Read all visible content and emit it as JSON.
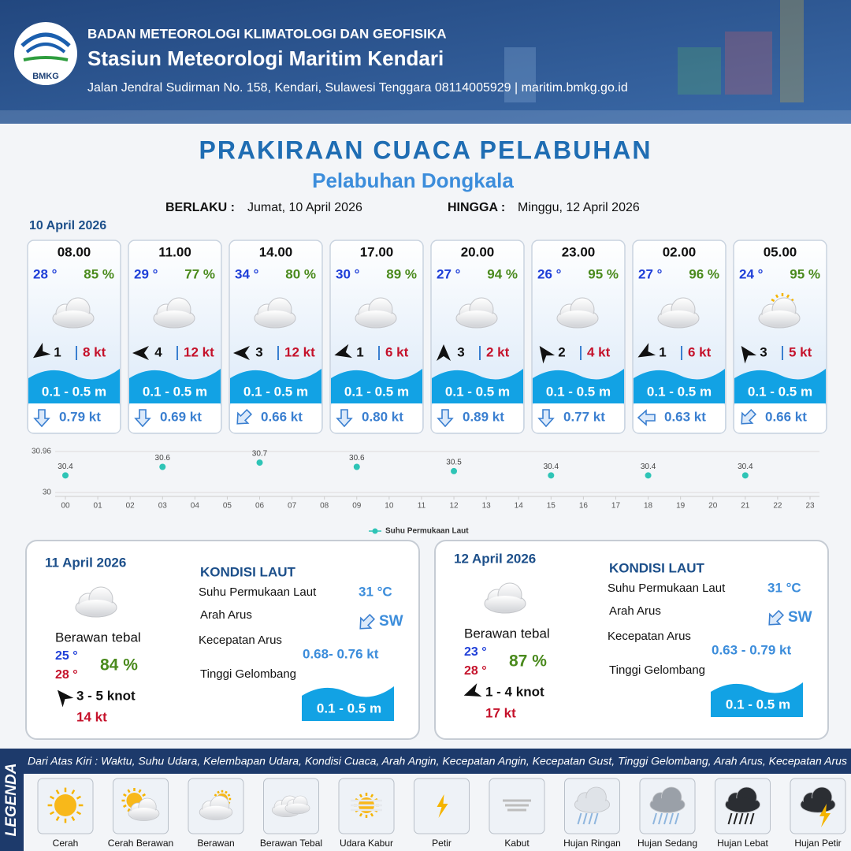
{
  "header": {
    "logo": "BMKG",
    "agency": "BADAN METEOROLOGI KLIMATOLOGI DAN GEOFISIKA",
    "station": "Stasiun Meteorologi Maritim Kendari",
    "address": "Jalan Jendral Sudirman No. 158, Kendari, Sulawesi Tenggara  08114005929 | maritim.bmkg.go.id"
  },
  "title": "PRAKIRAAN CUACA PELABUHAN",
  "subtitle": "Pelabuhan Dongkala",
  "validity": {
    "from_label": "BERLAKU :",
    "from": "Jumat, 10 April 2026",
    "to_label": "HINGGA :",
    "to": "Minggu, 12 April 2026"
  },
  "day_date": "10 April 2026",
  "forecasts": [
    {
      "time": "08.00",
      "temp": "28 °",
      "humidity": "85 %",
      "wind": "1",
      "gust": "8 kt",
      "wave": "0.1 - 0.5 m",
      "current": "0.79 kt"
    },
    {
      "time": "11.00",
      "temp": "29 °",
      "humidity": "77 %",
      "wind": "4",
      "gust": "12 kt",
      "wave": "0.1 - 0.5 m",
      "current": "0.69 kt"
    },
    {
      "time": "14.00",
      "temp": "34 °",
      "humidity": "80 %",
      "wind": "3",
      "gust": "12 kt",
      "wave": "0.1 - 0.5 m",
      "current": "0.66 kt"
    },
    {
      "time": "17.00",
      "temp": "30 °",
      "humidity": "89 %",
      "wind": "1",
      "gust": "6 kt",
      "wave": "0.1 - 0.5 m",
      "current": "0.80 kt"
    },
    {
      "time": "20.00",
      "temp": "27 °",
      "humidity": "94 %",
      "wind": "3",
      "gust": "2 kt",
      "wave": "0.1 - 0.5 m",
      "current": "0.89 kt"
    },
    {
      "time": "23.00",
      "temp": "26 °",
      "humidity": "95 %",
      "wind": "2",
      "gust": "4 kt",
      "wave": "0.1 - 0.5 m",
      "current": "0.77 kt"
    },
    {
      "time": "02.00",
      "temp": "27 °",
      "humidity": "96 %",
      "wind": "1",
      "gust": "6 kt",
      "wave": "0.1 - 0.5 m",
      "current": "0.63 kt"
    },
    {
      "time": "05.00",
      "temp": "24 °",
      "humidity": "95 %",
      "wind": "3",
      "gust": "5 kt",
      "wave": "0.1 - 0.5 m",
      "current": "0.66 kt"
    }
  ],
  "chart_data": {
    "type": "scatter",
    "series": [
      {
        "name": "Suhu Permukaan Laut",
        "color": "#2ec4b6",
        "x": [
          0,
          3,
          6,
          9,
          12,
          15,
          18,
          21
        ],
        "values": [
          30.4,
          30.6,
          30.7,
          30.6,
          30.5,
          30.4,
          30.4,
          30.4
        ]
      }
    ],
    "xlim": [
      0,
      23
    ],
    "xticks": [
      {
        "value": 0,
        "label": "00"
      },
      {
        "value": 1,
        "label": "01"
      },
      {
        "value": 2,
        "label": "02"
      },
      {
        "value": 3,
        "label": "03"
      },
      {
        "value": 4,
        "label": "04"
      },
      {
        "value": 5,
        "label": "05"
      },
      {
        "value": 6,
        "label": "06"
      },
      {
        "value": 7,
        "label": "07"
      },
      {
        "value": 8,
        "label": "08"
      },
      {
        "value": 9,
        "label": "09"
      },
      10,
      11,
      12,
      13,
      14,
      15,
      16,
      17,
      18,
      19,
      20,
      21,
      22,
      23
    ],
    "ylim": [
      30,
      30.96
    ],
    "yticks": [
      30,
      30.96
    ],
    "grid": true
  },
  "daily": [
    {
      "date": "11 April 2026",
      "condition": "Berawan tebal",
      "temp_min": "25 °",
      "temp_max": "28 °",
      "humidity": "84 %",
      "wind": "3  - 5 knot",
      "gust": "14 kt",
      "sea_title": "KONDISI LAUT",
      "sst_label": "Suhu Permukaan Laut",
      "sst": "31 °C",
      "current_dir_label": "Arah Arus",
      "current_dir": "SW",
      "current_speed_label": "Kecepatan Arus",
      "current_speed": "0.68- 0.76 kt",
      "wave_label": "Tinggi Gelombang",
      "wave": "0.1 - 0.5 m"
    },
    {
      "date": "12 April 2026",
      "condition": "Berawan tebal",
      "temp_min": "23 °",
      "temp_max": "28 °",
      "humidity": "87 %",
      "wind": "1 - 4 knot",
      "gust": "17 kt",
      "sea_title": "KONDISI LAUT",
      "sst_label": "Suhu Permukaan Laut",
      "sst": "31 °C",
      "current_dir_label": "Arah Arus",
      "current_dir": "SW",
      "current_speed_label": "Kecepatan Arus",
      "current_speed": "0.63 - 0.79 kt",
      "wave_label": "Tinggi Gelombang",
      "wave": "0.1 - 0.5 m"
    }
  ],
  "legend": {
    "title": "LEGENDA",
    "description": "Dari Atas Kiri : Waktu, Suhu Udara, Kelembapan Udara, Kondisi Cuaca, Arah Angin, Kecepatan Angin, Kecepatan Gust, Tinggi Gelombang, Arah Arus, Kecepatan Arus",
    "items": [
      "Cerah",
      "Cerah Berawan",
      "Berawan",
      "Berawan Tebal",
      "Udara Kabur",
      "Petir",
      "Kabut",
      "Hujan Ringan",
      "Hujan Sedang",
      "Hujan Lebat",
      "Hujan Petir"
    ]
  }
}
